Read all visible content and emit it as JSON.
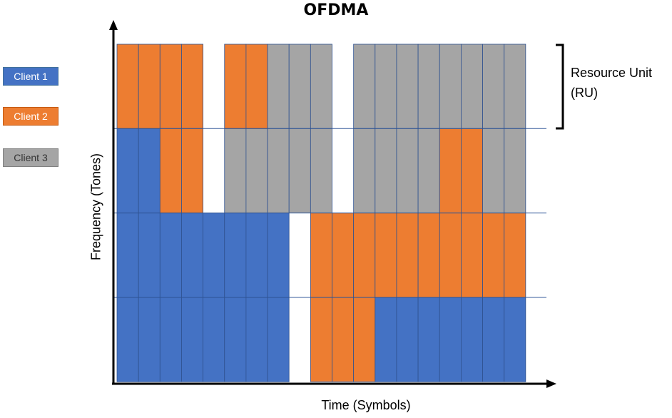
{
  "title": "OFDMA",
  "y_axis_label": "Frequency (Tones)",
  "x_axis_label": "Time (Symbols)",
  "ru_label_line1": "Resource Unit",
  "ru_label_line2": "(RU)",
  "legend": [
    {
      "label": "Client 1",
      "client": 1
    },
    {
      "label": "Client 2",
      "client": 2
    },
    {
      "label": "Client 3",
      "client": 3
    }
  ],
  "colors": {
    "client1": "#4472c4",
    "client2": "#ed7d31",
    "client3": "#a5a5a5",
    "grid_line": "#2e5597"
  },
  "grid": {
    "columns": 19,
    "rows": 4,
    "cells": [
      [
        2,
        2,
        2,
        2,
        0,
        2,
        2,
        3,
        3,
        3,
        0,
        3,
        3,
        3,
        3,
        3,
        3,
        3,
        3
      ],
      [
        1,
        1,
        2,
        2,
        0,
        3,
        3,
        3,
        3,
        3,
        0,
        3,
        3,
        3,
        3,
        2,
        2,
        3,
        3
      ],
      [
        1,
        1,
        1,
        1,
        1,
        1,
        1,
        1,
        0,
        2,
        2,
        2,
        2,
        2,
        2,
        2,
        2,
        2,
        2
      ],
      [
        1,
        1,
        1,
        1,
        1,
        1,
        1,
        1,
        0,
        2,
        2,
        2,
        1,
        1,
        1,
        1,
        1,
        1,
        1
      ]
    ]
  }
}
